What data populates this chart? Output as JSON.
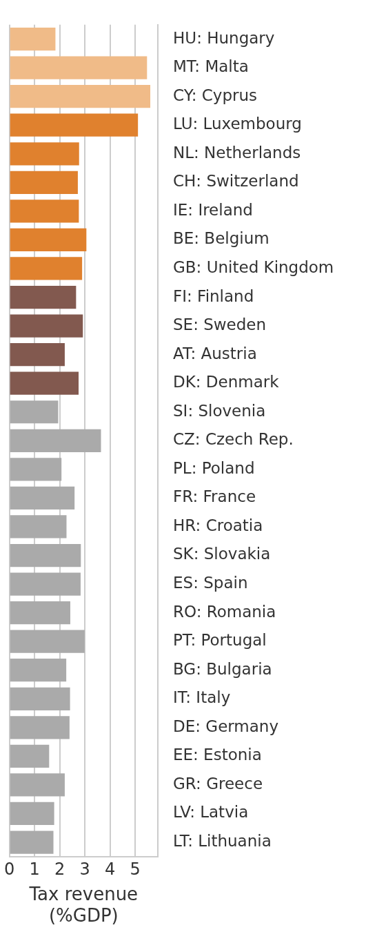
{
  "chart_data": {
    "type": "bar",
    "orientation": "horizontal",
    "xlabel": "Tax revenue\n(%GDP)",
    "categories": [
      "HU: Hungary",
      "MT: Malta",
      "CY: Cyprus",
      "LU: Luxembourg",
      "NL: Netherlands",
      "CH: Switzerland",
      "IE: Ireland",
      "BE: Belgium",
      "GB: United Kingdom",
      "FI: Finland",
      "SE: Sweden",
      "AT: Austria",
      "DK: Denmark",
      "SI: Slovenia",
      "CZ: Czech Rep.",
      "PL: Poland",
      "FR: France",
      "HR: Croatia",
      "SK: Slovakia",
      "ES: Spain",
      "RO: Romania",
      "PT: Portugal",
      "BG: Bulgaria",
      "IT: Italy",
      "DE: Germany",
      "EE: Estonia",
      "GR: Greece",
      "LV: Latvia",
      "LT: Lithuania"
    ],
    "values": [
      1.83,
      5.47,
      5.6,
      5.11,
      2.77,
      2.72,
      2.76,
      3.06,
      2.89,
      2.65,
      2.92,
      2.2,
      2.75,
      1.94,
      3.64,
      2.07,
      2.59,
      2.27,
      2.84,
      2.83,
      2.42,
      2.99,
      2.26,
      2.41,
      2.39,
      1.58,
      2.2,
      1.78,
      1.75
    ],
    "colors": [
      "#f0bb88",
      "#f0bb88",
      "#f0bb88",
      "#e0812e",
      "#e0812e",
      "#e0812e",
      "#e0812e",
      "#e0812e",
      "#e0812e",
      "#82594f",
      "#82594f",
      "#82594f",
      "#82594f",
      "#aaaaaa",
      "#aaaaaa",
      "#aaaaaa",
      "#aaaaaa",
      "#aaaaaa",
      "#aaaaaa",
      "#aaaaaa",
      "#aaaaaa",
      "#aaaaaa",
      "#aaaaaa",
      "#aaaaaa",
      "#aaaaaa",
      "#aaaaaa",
      "#aaaaaa",
      "#aaaaaa",
      "#aaaaaa"
    ],
    "xlim": [
      0,
      5.9
    ],
    "xticks": [
      0,
      1,
      2,
      3,
      4,
      5
    ],
    "grid": "x",
    "legend": false
  }
}
